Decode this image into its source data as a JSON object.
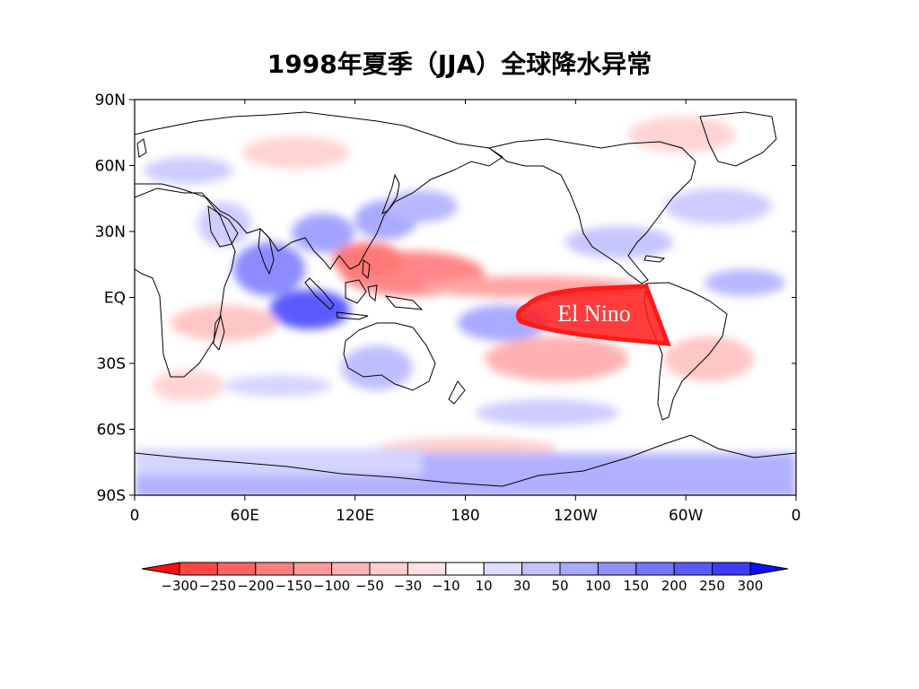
{
  "title": "1998年夏季（JJA）全球降水异常",
  "map": {
    "lat_ticks": [
      "90N",
      "60N",
      "30N",
      "EQ",
      "30S",
      "60S",
      "90S"
    ],
    "lon_ticks": [
      "0",
      "60E",
      "120E",
      "180",
      "120W",
      "60W",
      "0"
    ],
    "annotation": "El Nino",
    "annotation_color": "#ff1a1a"
  },
  "colorbar": {
    "labels": [
      "-300",
      "-250",
      "-200",
      "-150",
      "-100",
      "-50",
      "-30",
      "-10",
      "10",
      "30",
      "50",
      "100",
      "150",
      "200",
      "250",
      "300"
    ],
    "colors": [
      "#ff0d0d",
      "#ff4545",
      "#ff6464",
      "#ff7f7f",
      "#ff9a9a",
      "#ffb5b5",
      "#ffcece",
      "#ffe2e2",
      "#ffffff",
      "#dcdcff",
      "#c2c2ff",
      "#a9a9ff",
      "#8e8eff",
      "#7474ff",
      "#5a5aff",
      "#3c3cff",
      "#0d0dff"
    ]
  }
}
